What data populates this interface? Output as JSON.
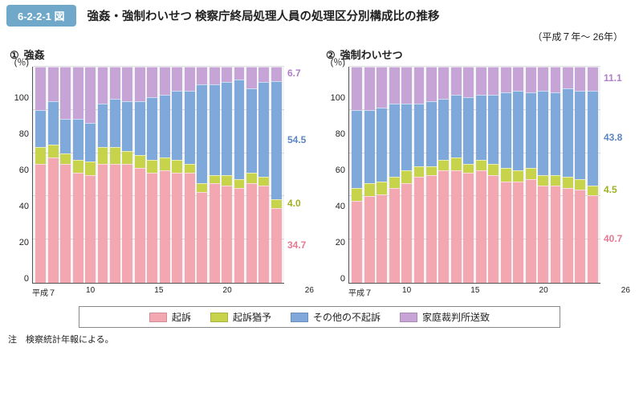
{
  "header": {
    "badge": "6-2-2-1 図",
    "title": "強姦・強制わいせつ 検察庁終局処理人員の処理区分別構成比の推移",
    "year_range": "（平成７年～ 26年）"
  },
  "legend": {
    "items": [
      {
        "label": "起訴",
        "color": "#f3a8b1"
      },
      {
        "label": "起訴猶予",
        "color": "#c7d34a"
      },
      {
        "label": "その他の不起訴",
        "color": "#7fa9da"
      },
      {
        "label": "家庭裁判所送致",
        "color": "#c6a5d6"
      }
    ]
  },
  "footnote": "注　検察統計年報による。",
  "axis": {
    "y_unit": "(％)",
    "y_ticks": [
      0,
      20,
      40,
      60,
      80,
      100
    ],
    "x_full_labels": [
      "平成７",
      "",
      "",
      "10",
      "",
      "",
      "",
      "",
      "15",
      "",
      "",
      "",
      "",
      "20",
      "",
      "",
      "",
      "",
      "",
      "26"
    ]
  },
  "styling": {
    "plot_background": "#f2f4f5",
    "grid_color": "rgba(0,0,0,0.12)",
    "axis_color": "#555555",
    "badge_bg": "#6fa8c9",
    "end_label_colors": {
      "purple": "#b07dc8",
      "blue": "#5b86c3",
      "green": "#9fb020",
      "pink": "#e77993"
    }
  },
  "panels": [
    {
      "id": "rape",
      "circled": "①",
      "title": "強姦",
      "end_labels": [
        {
          "value": "6.7",
          "color_key": "purple"
        },
        {
          "value": "54.5",
          "color_key": "blue"
        },
        {
          "value": "4.0",
          "color_key": "green"
        },
        {
          "value": "34.7",
          "color_key": "pink"
        }
      ],
      "series_comment": "values are [起訴, 起訴猶予, その他の不起訴, 家庭裁判所送致] summing ~100; H7..H26",
      "bars": [
        [
          55,
          8,
          17,
          20
        ],
        [
          58,
          6,
          20,
          16
        ],
        [
          55,
          5,
          16,
          24
        ],
        [
          51,
          6,
          19,
          24
        ],
        [
          50,
          6,
          18,
          26
        ],
        [
          55,
          8,
          20,
          17
        ],
        [
          55,
          8,
          22,
          15
        ],
        [
          55,
          6,
          23,
          16
        ],
        [
          53,
          6,
          25,
          16
        ],
        [
          51,
          6,
          29,
          14
        ],
        [
          52,
          6,
          29,
          13
        ],
        [
          51,
          6,
          32,
          11
        ],
        [
          51,
          4,
          34,
          11
        ],
        [
          42,
          4,
          46,
          8
        ],
        [
          46,
          4,
          42,
          8
        ],
        [
          45,
          5,
          43,
          7
        ],
        [
          44,
          4,
          46,
          6
        ],
        [
          46,
          5,
          39,
          10
        ],
        [
          45,
          4,
          44,
          7
        ],
        [
          34.7,
          4.0,
          54.5,
          6.7
        ]
      ]
    },
    {
      "id": "indecent",
      "circled": "②",
      "title": "強制わいせつ",
      "end_labels": [
        {
          "value": "11.1",
          "color_key": "purple"
        },
        {
          "value": "43.8",
          "color_key": "blue"
        },
        {
          "value": "4.5",
          "color_key": "green"
        },
        {
          "value": "40.7",
          "color_key": "pink"
        }
      ],
      "bars": [
        [
          38,
          6,
          36,
          20
        ],
        [
          40,
          6,
          34,
          20
        ],
        [
          41,
          6,
          34,
          19
        ],
        [
          44,
          5,
          34,
          17
        ],
        [
          46,
          6,
          31,
          17
        ],
        [
          49,
          5,
          29,
          17
        ],
        [
          50,
          4,
          30,
          16
        ],
        [
          52,
          5,
          28,
          15
        ],
        [
          52,
          6,
          29,
          13
        ],
        [
          51,
          4,
          31,
          14
        ],
        [
          52,
          5,
          30,
          13
        ],
        [
          50,
          5,
          32,
          13
        ],
        [
          47,
          6,
          35,
          12
        ],
        [
          47,
          5,
          37,
          11
        ],
        [
          48,
          5,
          35,
          12
        ],
        [
          45,
          5,
          39,
          11
        ],
        [
          45,
          5,
          38,
          12
        ],
        [
          44,
          5,
          41,
          10
        ],
        [
          43,
          5,
          41,
          11
        ],
        [
          40.7,
          4.5,
          43.8,
          11.1
        ]
      ]
    }
  ]
}
